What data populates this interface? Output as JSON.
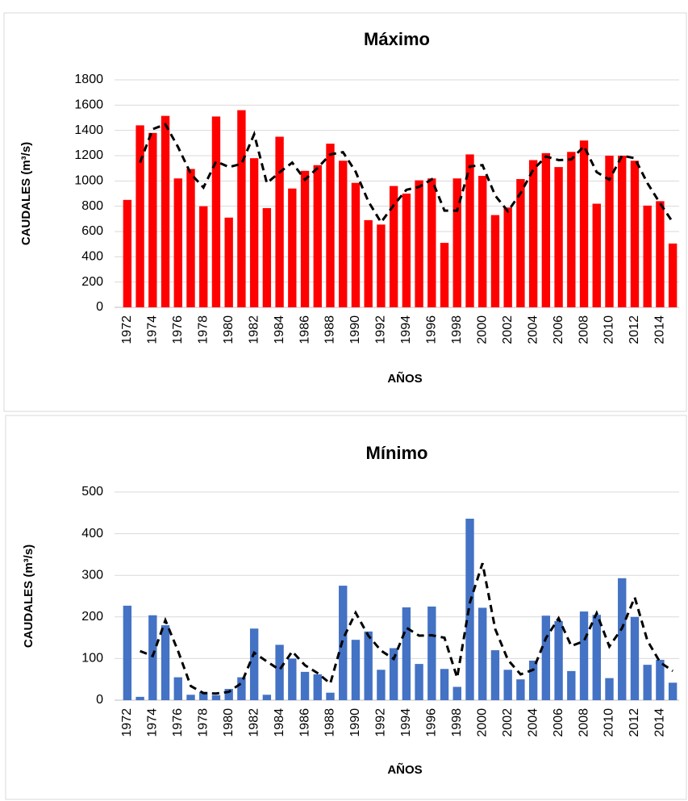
{
  "chart_data": [
    {
      "type": "bar",
      "title": "Máximo",
      "x_label": "AÑOS",
      "y_label": "CAUDALES (m³/s)",
      "categories": [
        "1972",
        null,
        "1974",
        null,
        "1976",
        null,
        "1978",
        null,
        "1980",
        null,
        "1982",
        null,
        "1984",
        null,
        "1986",
        null,
        "1988",
        null,
        "1990",
        null,
        "1992",
        null,
        "1994",
        null,
        "1996",
        null,
        "1998",
        null,
        "2000",
        null,
        "2002",
        null,
        "2004",
        null,
        "2006",
        null,
        "2008",
        null,
        "2010",
        null,
        "2012",
        null,
        "2014",
        null
      ],
      "series": [
        {
          "color": "#ff0000",
          "values": [
            850,
            1440,
            1380,
            1515,
            1020,
            1095,
            800,
            1510,
            710,
            1560,
            1180,
            785,
            1350,
            940,
            1080,
            1125,
            1295,
            1160,
            985,
            690,
            655,
            960,
            900,
            1005,
            1020,
            510,
            1020,
            1210,
            1040,
            730,
            790,
            1015,
            1165,
            1220,
            1110,
            1230,
            1320,
            820,
            1200,
            1200,
            1160,
            805,
            840,
            505
          ]
        },
        {
          "color": "#000000",
          "line_style": "dashed",
          "values": [
            null,
            1145,
            1410,
            1448,
            1268,
            1058,
            948,
            1155,
            1110,
            1135,
            1370,
            983,
            1068,
            1145,
            1010,
            1103,
            1210,
            1228,
            1073,
            838,
            673,
            808,
            930,
            953,
            1013,
            765,
            765,
            1115,
            1125,
            885,
            760,
            903,
            1090,
            1193,
            1165,
            1170,
            1275,
            1070,
            1010,
            1200,
            1180,
            983,
            823,
            673
          ]
        }
      ],
      "ylim": [
        0,
        1800
      ],
      "yticks": [
        0,
        200,
        400,
        600,
        800,
        1000,
        1200,
        1400,
        1600,
        1800
      ],
      "grid": true
    },
    {
      "type": "bar",
      "title": "Mínimo",
      "x_label": "AÑOS",
      "y_label": "CAUDALES (m³/s)",
      "categories": [
        "1972",
        null,
        "1974",
        null,
        "1976",
        null,
        "1978",
        null,
        "1980",
        null,
        "1982",
        null,
        "1984",
        null,
        "1986",
        null,
        "1988",
        null,
        "1990",
        null,
        "1992",
        null,
        "1994",
        null,
        "1996",
        null,
        "1998",
        null,
        "2000",
        null,
        "2002",
        null,
        "2004",
        null,
        "2006",
        null,
        "2008",
        null,
        "2010",
        null,
        "2012",
        null,
        "2014",
        null
      ],
      "series": [
        {
          "color": "#4472c4",
          "values": [
            227,
            8,
            204,
            180,
            55,
            13,
            20,
            12,
            27,
            55,
            172,
            13,
            133,
            100,
            68,
            62,
            18,
            275,
            145,
            165,
            73,
            125,
            223,
            87,
            225,
            75,
            32,
            436,
            222,
            120,
            73,
            50,
            95,
            203,
            190,
            70,
            213,
            205,
            53,
            293,
            200,
            85,
            97,
            42
          ]
        },
        {
          "color": "#000000",
          "line_style": "dashed",
          "values": [
            null,
            118,
            106,
            192,
            118,
            34,
            17,
            16,
            20,
            41,
            114,
            93,
            73,
            117,
            84,
            65,
            40,
            147,
            210,
            155,
            119,
            99,
            174,
            155,
            156,
            150,
            54,
            234,
            329,
            171,
            97,
            62,
            73,
            149,
            197,
            130,
            142,
            209,
            129,
            173,
            247,
            143,
            91,
            70
          ]
        }
      ],
      "ylim": [
        0,
        500
      ],
      "yticks": [
        0,
        100,
        200,
        300,
        400,
        500
      ],
      "grid": true
    }
  ]
}
